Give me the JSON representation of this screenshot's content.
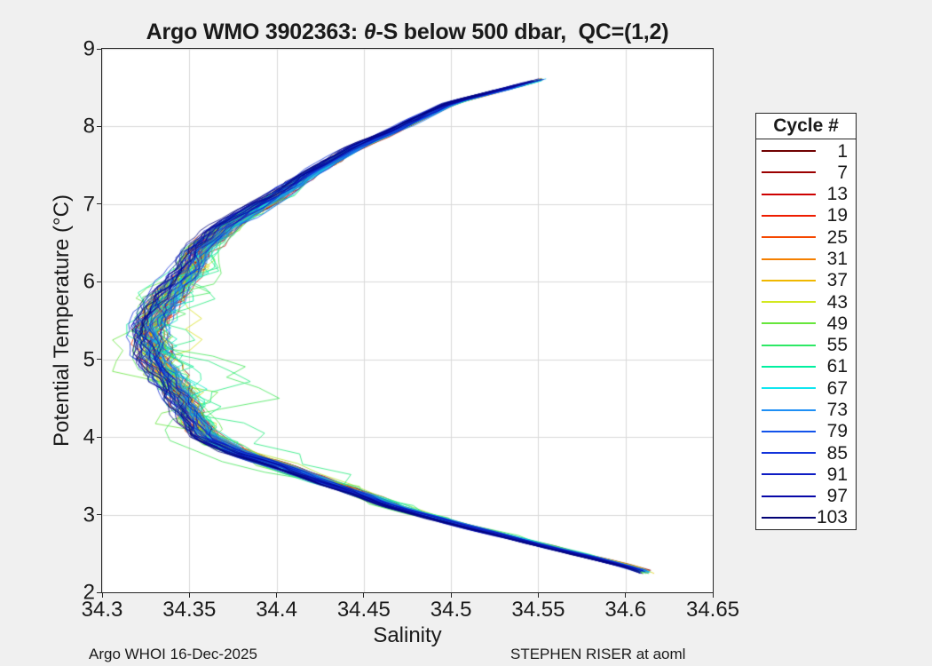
{
  "figure": {
    "title_prefix": "Argo WMO 3902363: ",
    "title_theta": "θ",
    "title_suffix": "-S below 500 dbar,  QC=(1,2)"
  },
  "chart_data": {
    "type": "line",
    "title": "Argo WMO 3902363: θ-S below 500 dbar,  QC=(1,2)",
    "xlabel": "Salinity",
    "ylabel": "Potential Temperature (°C)",
    "xlim": [
      34.3,
      34.65
    ],
    "ylim": [
      2,
      9
    ],
    "xticks": {
      "values": [
        34.3,
        34.35,
        34.4,
        34.45,
        34.5,
        34.55,
        34.6,
        34.65
      ],
      "labels": [
        "34.3",
        "34.35",
        "34.4",
        "34.45",
        "34.5",
        "34.55",
        "34.6",
        "34.65"
      ]
    },
    "yticks": {
      "values": [
        2,
        3,
        4,
        5,
        6,
        7,
        8,
        9
      ],
      "labels": [
        "2",
        "3",
        "4",
        "5",
        "6",
        "7",
        "8",
        "9"
      ]
    },
    "grid": true,
    "grid_color": "#d9d9d9",
    "axes_bg": "#ffffff",
    "figure_bg": "#f0f0f0",
    "axis_color": "#262626",
    "legend": {
      "title": "Cycle #",
      "location": "outside-right",
      "entries": [
        {
          "label": "1",
          "color": "#700000"
        },
        {
          "label": "7",
          "color": "#9B0000"
        },
        {
          "label": "13",
          "color": "#CE0000"
        },
        {
          "label": "19",
          "color": "#EE1C00"
        },
        {
          "label": "25",
          "color": "#F54800"
        },
        {
          "label": "31",
          "color": "#F57F00"
        },
        {
          "label": "37",
          "color": "#F0B800"
        },
        {
          "label": "43",
          "color": "#D3E821"
        },
        {
          "label": "49",
          "color": "#66E63C"
        },
        {
          "label": "55",
          "color": "#2EE865"
        },
        {
          "label": "61",
          "color": "#00F0A0"
        },
        {
          "label": "67",
          "color": "#10E6F0"
        },
        {
          "label": "73",
          "color": "#1E8FF5"
        },
        {
          "label": "79",
          "color": "#1253EB"
        },
        {
          "label": "85",
          "color": "#1233DB"
        },
        {
          "label": "91",
          "color": "#0D1CC4"
        },
        {
          "label": "97",
          "color": "#0707A8"
        },
        {
          "label": "103",
          "color": "#020275"
        }
      ]
    },
    "profiles": {
      "count": 103,
      "cycle_range": [
        1,
        103
      ],
      "colormap_note": "cycle 1 = dark red through orange/yellow/green/cyan/blue to cycle 103 = dark navy; legend labels every 6th cycle",
      "theta_top_C": 8.62,
      "theta_bottom_C": 2.25,
      "salinity_min": 34.318,
      "salinity_max": 34.625,
      "representative_curve": {
        "theta_C": [
          8.62,
          8.3,
          7.95,
          7.74,
          7.4,
          7.1,
          6.7,
          6.4,
          6.15,
          5.8,
          5.4,
          5.0,
          4.8,
          4.4,
          4.0,
          3.8,
          3.65,
          3.45,
          3.3,
          3.1,
          2.9,
          2.62,
          2.4,
          2.27
        ],
        "salinity": [
          34.555,
          34.5,
          34.468,
          34.446,
          34.42,
          34.4,
          34.37,
          34.356,
          34.35,
          34.337,
          34.327,
          34.331,
          34.338,
          34.348,
          34.36,
          34.378,
          34.4,
          34.424,
          34.444,
          34.468,
          34.5,
          34.55,
          34.59,
          34.612
        ]
      }
    }
  },
  "annotations": {
    "footer_left": "Argo WHOI 16-Dec-2025",
    "footer_right": "STEPHEN RISER at aoml"
  }
}
